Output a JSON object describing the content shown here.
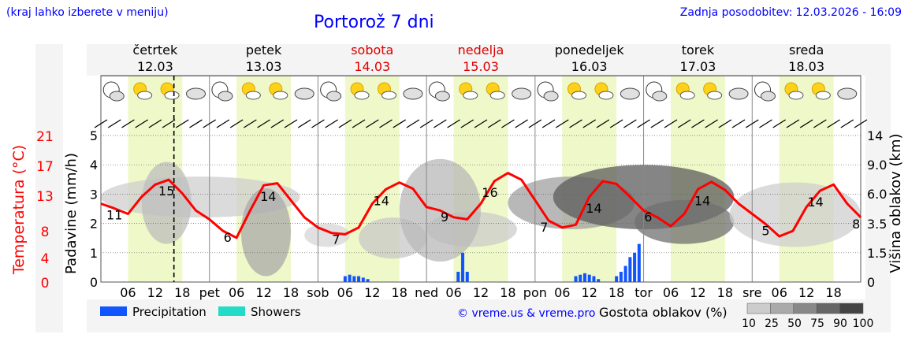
{
  "header": {
    "region_hint": "(kraj lahko izberete v meniju)",
    "title": "Portorož 7 dni",
    "updated_label": "Zadnja posodobitev:",
    "updated_value": "12.03.2026 - 16:09"
  },
  "colors": {
    "title_blue": "#0000ff",
    "temp_red": "#ff0000",
    "day_band": "#eef8c8",
    "precip_blue": "#1155ff",
    "showers_cyan": "#22dcc8",
    "weekend_red": "#dd0000"
  },
  "chart_data": {
    "type": "line",
    "title": "Portorož 7 dni",
    "days": [
      {
        "name": "četrtek",
        "date": "12.03",
        "weekend": false
      },
      {
        "name": "petek",
        "date": "13.03",
        "weekend": false
      },
      {
        "name": "sobota",
        "date": "14.03",
        "weekend": true
      },
      {
        "name": "nedelja",
        "date": "15.03",
        "weekend": true
      },
      {
        "name": "ponedeljek",
        "date": "16.03",
        "weekend": false
      },
      {
        "name": "torek",
        "date": "17.03",
        "weekend": false
      },
      {
        "name": "sreda",
        "date": "18.03",
        "weekend": false
      }
    ],
    "x_tick_labels": [
      "06",
      "12",
      "18",
      "pet",
      "06",
      "12",
      "18",
      "sob",
      "06",
      "12",
      "18",
      "ned",
      "06",
      "12",
      "18",
      "pon",
      "06",
      "12",
      "18",
      "tor",
      "06",
      "12",
      "18",
      "sre",
      "06",
      "12",
      "18"
    ],
    "x_range_hours": [
      0,
      168
    ],
    "now_hour": 16.15,
    "left_axis": {
      "label": "Padavine (mm/h)",
      "ticks": [
        "0",
        "1",
        "2",
        "3",
        "4",
        "5"
      ],
      "range": [
        0,
        5
      ]
    },
    "temp_axis": {
      "label": "Temperatura (°C)",
      "ticks": [
        "0",
        "4",
        "8",
        "13",
        "17",
        "21"
      ]
    },
    "right_axis": {
      "label": "Višina oblakov (km)",
      "ticks": [
        "0",
        "1.5",
        "3.5",
        "6.0",
        "9.0",
        "14"
      ]
    },
    "temperature_series": {
      "name": "Temperatura",
      "hours": [
        0,
        3,
        6,
        9,
        12,
        15,
        18,
        21,
        24,
        27,
        30,
        33,
        36,
        39,
        42,
        45,
        48,
        51,
        54,
        57,
        60,
        63,
        66,
        69,
        72,
        75,
        78,
        81,
        84,
        87,
        90,
        93,
        96,
        99,
        102,
        105,
        108,
        111,
        114,
        117,
        120,
        123,
        126,
        129,
        132,
        135,
        138,
        141,
        144,
        147,
        150,
        153,
        156,
        159,
        162,
        165,
        168
      ],
      "values": [
        11.5,
        10.8,
        10.0,
        12.5,
        14.3,
        15.0,
        13.0,
        10.5,
        9.2,
        7.5,
        6.5,
        10.5,
        14.2,
        14.5,
        12.0,
        9.5,
        8.0,
        7.2,
        7.0,
        8.0,
        11.5,
        13.6,
        14.6,
        13.7,
        11.0,
        10.5,
        9.5,
        9.2,
        11.5,
        14.8,
        16.0,
        15.0,
        12.0,
        9.0,
        8.0,
        8.4,
        12.5,
        14.8,
        14.4,
        12.5,
        10.5,
        9.5,
        8.2,
        10.0,
        13.6,
        14.7,
        13.5,
        11.5,
        10.0,
        8.5,
        6.7,
        7.5,
        11.0,
        13.4,
        14.3,
        11.5,
        9.5
      ]
    },
    "temperature_labels": [
      {
        "hour": 3,
        "text": "11"
      },
      {
        "hour": 14.5,
        "text": "15"
      },
      {
        "hour": 28,
        "text": "6"
      },
      {
        "hour": 37,
        "text": "14"
      },
      {
        "hour": 52,
        "text": "7"
      },
      {
        "hour": 62,
        "text": "14"
      },
      {
        "hour": 76,
        "text": "9"
      },
      {
        "hour": 86,
        "text": "16"
      },
      {
        "hour": 98,
        "text": "7"
      },
      {
        "hour": 109,
        "text": "14"
      },
      {
        "hour": 121,
        "text": "6"
      },
      {
        "hour": 133,
        "text": "14"
      },
      {
        "hour": 147,
        "text": "5"
      },
      {
        "hour": 158,
        "text": "14"
      },
      {
        "hour": 167,
        "text": "8"
      }
    ],
    "precipitation_series": {
      "name": "Precipitation",
      "hours": [
        54,
        55,
        56,
        57,
        58,
        59,
        79,
        80,
        81,
        105,
        106,
        107,
        108,
        109,
        110,
        114,
        115,
        116,
        117,
        118,
        119
      ],
      "values": [
        0.2,
        0.25,
        0.2,
        0.2,
        0.15,
        0.1,
        0.35,
        1.0,
        0.35,
        0.2,
        0.25,
        0.3,
        0.25,
        0.2,
        0.1,
        0.2,
        0.35,
        0.55,
        0.85,
        1.0,
        1.3
      ]
    },
    "legend": {
      "precipitation": "Precipitation",
      "showers": "Showers",
      "credit": "© vreme.us & vreme.pro",
      "cloud_density_title": "Gostota oblakov (%)",
      "cloud_density_ticks": [
        "10",
        "25",
        "50",
        "75",
        "90",
        "100"
      ]
    }
  }
}
